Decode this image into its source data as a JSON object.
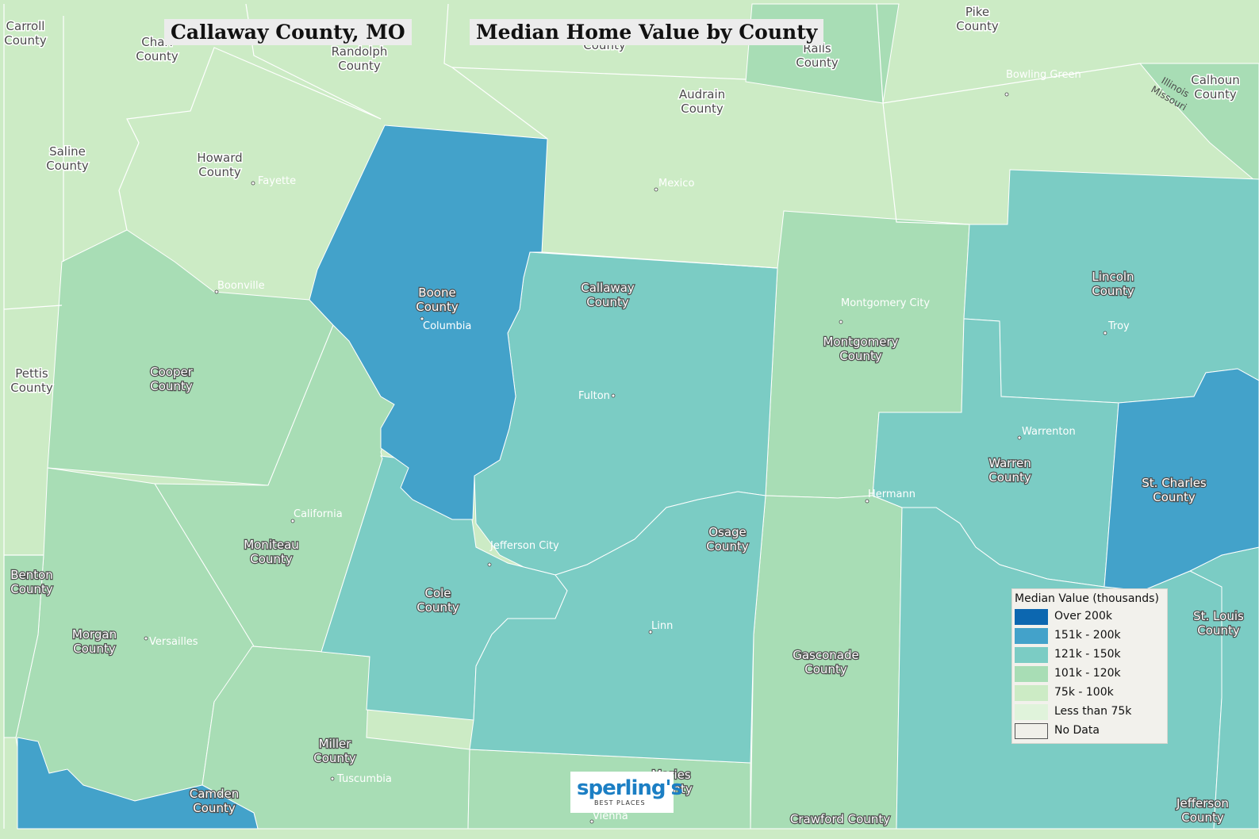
{
  "title_location": "Callaway County, MO",
  "title_metric": "Median Home Value by County",
  "colors": {
    "over_200k": "#0c67b0",
    "k151_200": "#43a2ca",
    "k121_150": "#7bccc4",
    "k101_120": "#a8ddb5",
    "k75_100": "#ccebc5",
    "less_75k": "#e0f3db",
    "no_data": "#f0efe9",
    "border": "#ffffff"
  },
  "legend": {
    "title": "Median Value (thousands)",
    "items": [
      {
        "label": "Over 200k",
        "color": "#0c67b0"
      },
      {
        "label": "151k - 200k",
        "color": "#43a2ca"
      },
      {
        "label": "121k - 150k",
        "color": "#7bccc4"
      },
      {
        "label": "101k - 120k",
        "color": "#a8ddb5"
      },
      {
        "label": "75k - 100k",
        "color": "#ccebc5"
      },
      {
        "label": "Less than 75k",
        "color": "#e0f3db"
      },
      {
        "label": "No Data",
        "color": "#f0efe9"
      }
    ]
  },
  "counties": {
    "carroll": "Carroll County",
    "chariton": "Chari County",
    "randolph": "Randolph County",
    "monroe": "County",
    "ralls": "Ralls County",
    "pike": "Pike County",
    "calhoun": "Calhoun County",
    "saline": "Saline County",
    "howard": "Howard County",
    "audrain": "Audrain County",
    "boone": "Boone County",
    "callaway": "Callaway County",
    "montgomery": "Montgomery County",
    "lincoln": "Lincoln County",
    "pettis": "Pettis County",
    "cooper": "Cooper County",
    "moniteau": "Moniteau County",
    "cole": "Cole County",
    "osage": "Osage County",
    "warren": "Warren County",
    "st_charles": "St. Charles County",
    "st_louis": "St. Louis County",
    "benton": "Benton County",
    "morgan": "Morgan County",
    "miller": "Miller County",
    "camden": "Camden County",
    "maries": "Maries County",
    "gasconade": "Gasconade County",
    "crawford": "Crawford County",
    "jefferson": "Jefferson County"
  },
  "cities": {
    "fayette": "Fayette",
    "boonville": "Boonville",
    "columbia": "Columbia",
    "mexico": "Mexico",
    "bowling_green": "Bowling Green",
    "fulton": "Fulton",
    "montgomery_city": "Montgomery City",
    "troy": "Troy",
    "warrenton": "Warrenton",
    "hermann": "Hermann",
    "california": "California",
    "jefferson_city": "Jefferson City",
    "linn": "Linn",
    "versailles": "Versailles",
    "tuscumbia": "Tuscumbia",
    "vienna": "Vienna"
  },
  "water": {
    "illinois": "Illinois",
    "missouri": "Missouri"
  },
  "logo": {
    "brand": "sperling's",
    "tagline": "BEST PLACES"
  }
}
